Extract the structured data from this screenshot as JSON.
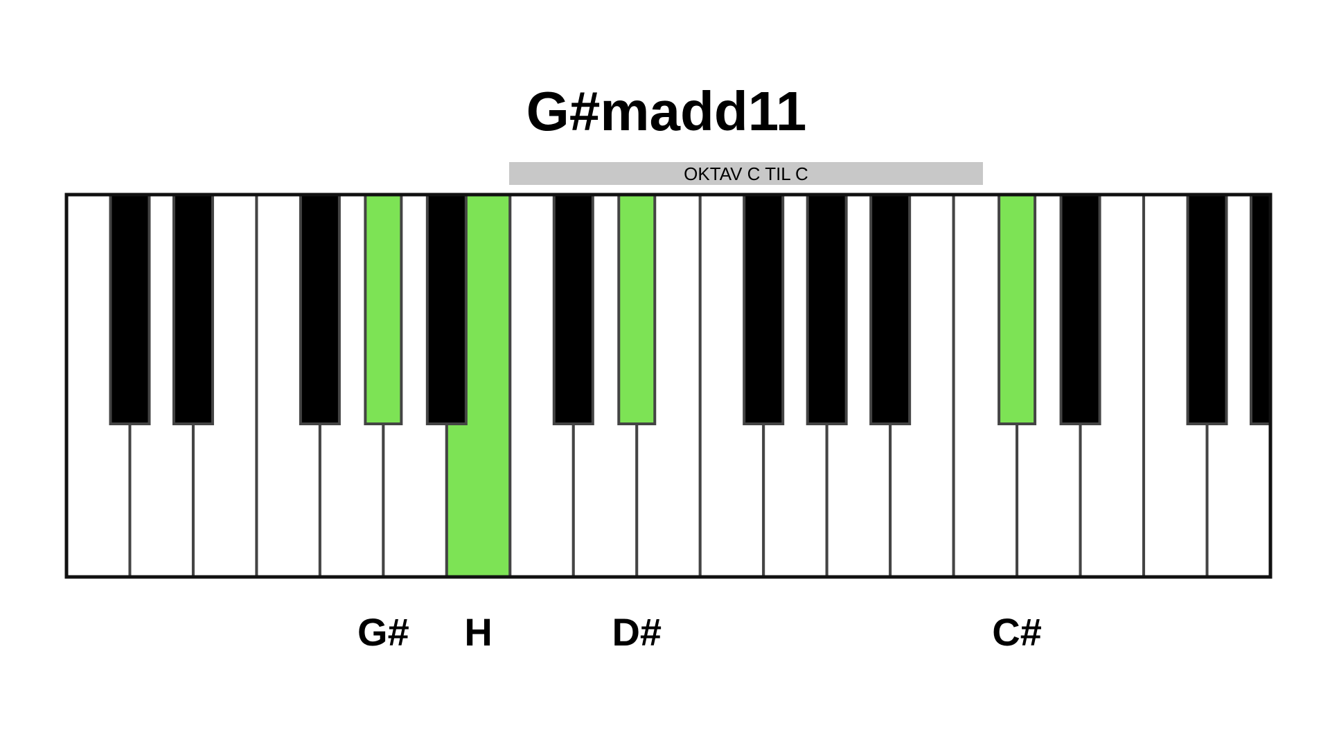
{
  "title": "G#madd11",
  "octave_label": "OKTAV C TIL C",
  "note_labels": [
    "G#",
    "H",
    "D#",
    "C#"
  ]
}
